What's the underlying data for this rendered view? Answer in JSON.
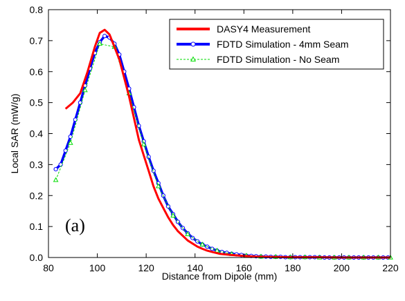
{
  "chart_data": {
    "type": "line",
    "title": "",
    "xlabel": "Distance from Dipole (mm)",
    "ylabel": "Local SAR (mW/g)",
    "xlim": [
      80,
      220
    ],
    "ylim": [
      0.0,
      0.8
    ],
    "xticks": [
      80,
      100,
      120,
      140,
      160,
      180,
      200,
      220
    ],
    "yticks": [
      0.0,
      0.1,
      0.2,
      0.3,
      0.4,
      0.5,
      0.6,
      0.7,
      0.8
    ],
    "ytick_labels": [
      "0.0",
      "0.1",
      "0.2",
      "0.3",
      "0.4",
      "0.5",
      "0.6",
      "0.7",
      "0.8"
    ],
    "grid": false,
    "legend_position": "top-right",
    "panel_label": "(a)",
    "series": [
      {
        "name": "DASY4 Measurement",
        "color": "#ff0000",
        "style": "solid-thick",
        "marker": "none",
        "x": [
          87,
          90,
          93,
          96,
          99,
          101,
          103,
          105,
          107,
          109,
          111,
          113,
          115,
          117,
          119,
          121,
          123,
          125,
          127,
          129,
          131,
          133,
          135,
          137,
          139,
          141,
          143,
          145,
          147,
          150,
          155,
          160,
          165,
          170,
          180,
          190,
          200,
          210,
          220
        ],
        "y": [
          0.48,
          0.5,
          0.53,
          0.6,
          0.68,
          0.725,
          0.735,
          0.72,
          0.68,
          0.64,
          0.58,
          0.52,
          0.45,
          0.38,
          0.33,
          0.28,
          0.23,
          0.19,
          0.16,
          0.13,
          0.105,
          0.085,
          0.07,
          0.055,
          0.045,
          0.035,
          0.028,
          0.022,
          0.018,
          0.012,
          0.008,
          0.005,
          0.003,
          0.002,
          0.001,
          0.001,
          0.0,
          0.0,
          0.0
        ]
      },
      {
        "name": "FDTD Simulation - 4mm Seam",
        "color": "#0000ff",
        "style": "solid-thick",
        "marker": "circle",
        "x": [
          83,
          85,
          87,
          89,
          91,
          93,
          95,
          97,
          99,
          101,
          103,
          105,
          107,
          109,
          111,
          113,
          115,
          117,
          119,
          121,
          123,
          125,
          127,
          129,
          131,
          133,
          135,
          137,
          139,
          141,
          143,
          145,
          147,
          149,
          151,
          153,
          155,
          157,
          159,
          161,
          163,
          165,
          167,
          169,
          171,
          173,
          175,
          177,
          179,
          181,
          183,
          185,
          187,
          189,
          191,
          193,
          195,
          197,
          199,
          201,
          203,
          205,
          207,
          209,
          211,
          213,
          215,
          217,
          219
        ],
        "y": [
          0.285,
          0.3,
          0.345,
          0.39,
          0.445,
          0.5,
          0.555,
          0.61,
          0.66,
          0.695,
          0.715,
          0.71,
          0.69,
          0.655,
          0.6,
          0.545,
          0.485,
          0.425,
          0.375,
          0.325,
          0.28,
          0.24,
          0.2,
          0.165,
          0.14,
          0.115,
          0.095,
          0.078,
          0.063,
          0.052,
          0.042,
          0.035,
          0.028,
          0.022,
          0.018,
          0.015,
          0.012,
          0.01,
          0.008,
          0.006,
          0.005,
          0.004,
          0.003,
          0.003,
          0.002,
          0.002,
          0.002,
          0.001,
          0.001,
          0.001,
          0.001,
          0.001,
          0.001,
          0.001,
          0.001,
          0.0,
          0.0,
          0.0,
          0.0,
          0.0,
          0.0,
          0.0,
          0.0,
          0.0,
          0.0,
          0.0,
          0.0,
          0.0,
          0.0
        ]
      },
      {
        "name": "FDTD Simulation - No Seam",
        "color": "#00dd00",
        "style": "dashed",
        "marker": "triangle",
        "x": [
          83,
          89,
          95,
          101,
          107,
          113,
          119,
          125,
          131,
          137,
          143,
          149,
          155,
          161,
          167,
          173,
          179,
          185,
          191,
          197,
          203,
          209,
          215,
          220
        ],
        "y": [
          0.25,
          0.37,
          0.54,
          0.69,
          0.68,
          0.53,
          0.365,
          0.23,
          0.135,
          0.075,
          0.042,
          0.022,
          0.011,
          0.006,
          0.003,
          0.002,
          0.001,
          0.001,
          0.0,
          0.0,
          0.0,
          0.0,
          0.0,
          0.0
        ]
      }
    ]
  }
}
